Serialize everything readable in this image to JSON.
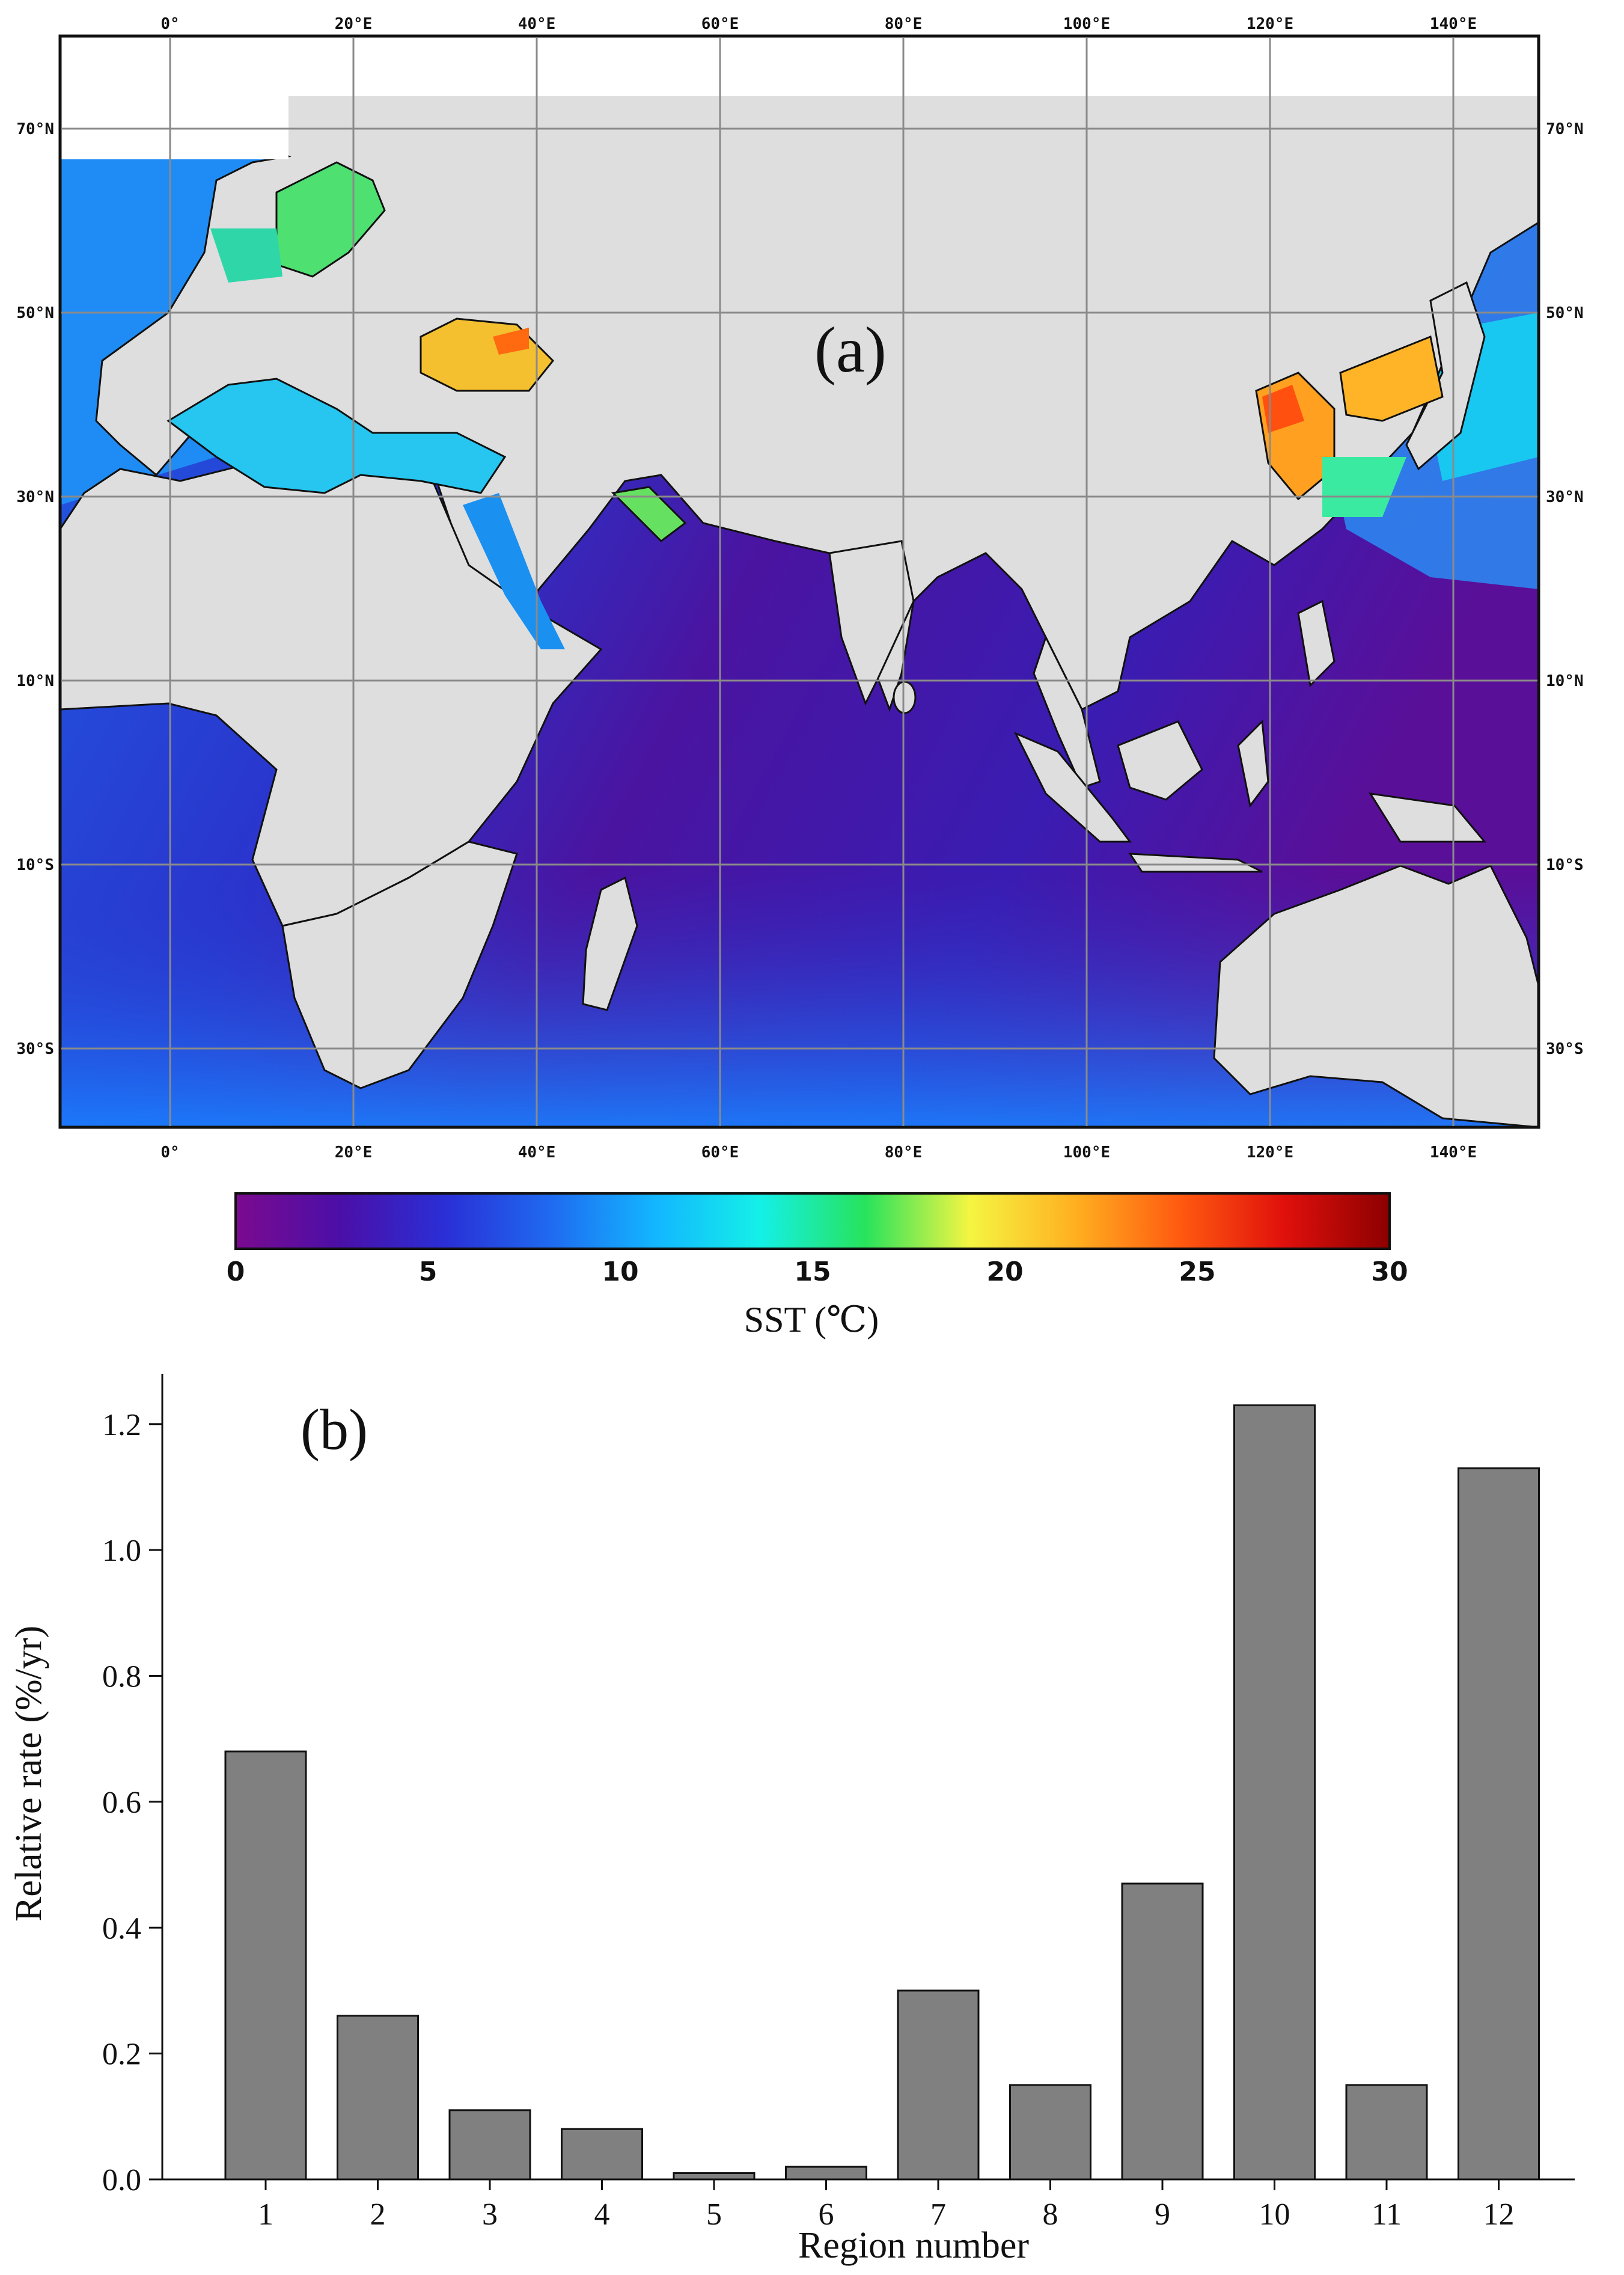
{
  "panel_a": {
    "label": "(a)",
    "lon_ticks": [
      "0°",
      "20°E",
      "40°E",
      "60°E",
      "80°E",
      "100°E",
      "120°E",
      "140°E"
    ],
    "lat_ticks": [
      "70°N",
      "50°N",
      "30°N",
      "10°N",
      "10°S",
      "30°S"
    ],
    "colorbar": {
      "ticks": [
        "0",
        "5",
        "10",
        "15",
        "20",
        "25",
        "30"
      ],
      "label": "SST (℃)",
      "colors": [
        "#7b0a8f",
        "#4b0fa8",
        "#2a2fd6",
        "#1f6af0",
        "#13b6ff",
        "#14f0e8",
        "#27e35c",
        "#f5f542",
        "#ffb020",
        "#ff5a10",
        "#e0100c",
        "#8c0000"
      ]
    },
    "land_color": "#dedede",
    "ocean_colors": [
      "#2030c8",
      "#4a14a0",
      "#1e60e6",
      "#1aa0ff"
    ]
  },
  "chart_data": {
    "type": "bar",
    "label": "(b)",
    "categories": [
      "1",
      "2",
      "3",
      "4",
      "5",
      "6",
      "7",
      "8",
      "9",
      "10",
      "11",
      "12"
    ],
    "values": [
      0.68,
      0.26,
      0.11,
      0.08,
      0.01,
      0.02,
      0.3,
      0.15,
      0.47,
      1.23,
      0.15,
      1.13
    ],
    "xlabel": "Region number",
    "ylabel": "Relative rate (%/yr)",
    "ylim": [
      0,
      1.28
    ],
    "yticks": [
      "0.0",
      "0.2",
      "0.4",
      "0.6",
      "0.8",
      "1.0",
      "1.2"
    ],
    "bar_color": "#808080",
    "grid": false
  }
}
